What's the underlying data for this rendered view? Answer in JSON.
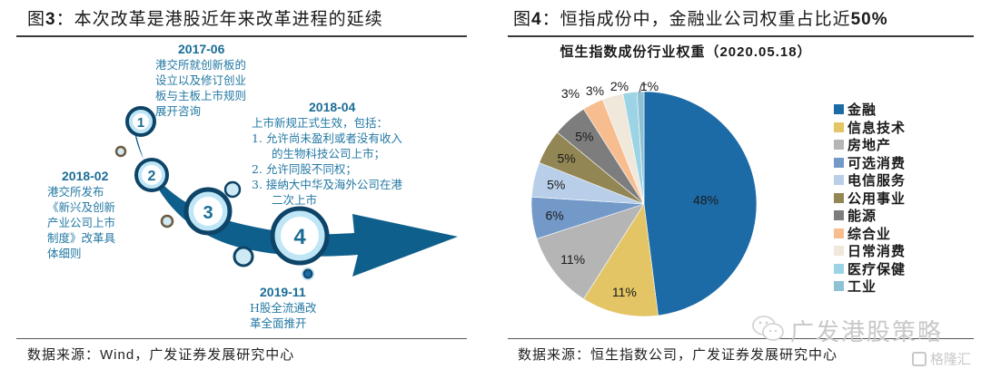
{
  "left_figure": {
    "title_prefix": "图",
    "title_num": "3",
    "title_text": "：本次改革是港股近年来改革进程的延续",
    "source_prefix": "数据来源：",
    "source_en": "Wind",
    "source_suffix": "，广发证券发展研究中心",
    "steps": [
      {
        "num": "1",
        "date": "2017-06",
        "lines": [
          "港交所就创新板的",
          "设立以及修订创业",
          "板与主板上市规则",
          "展开咨询"
        ]
      },
      {
        "num": "2",
        "date": "2018-02",
        "lines": [
          "港交所发布",
          "《新兴及创新",
          "产业公司上市",
          "制度》改革具",
          "体细则"
        ]
      },
      {
        "num": "3",
        "date": "2018-04",
        "lines": [
          "上市新规正式生效，包括：",
          "1.  允许尚未盈利或者没有收入",
          "的生物科技公司上市；",
          "2.  允许同股不同权；",
          "3.  接纳大中华及海外公司在港",
          "二次上市"
        ]
      },
      {
        "num": "4",
        "date": "2019-11",
        "lines": [
          "H股全流通改",
          "革全面推开"
        ]
      }
    ],
    "colors": {
      "arrow": "#0f5f8c",
      "ring": "#0d4467",
      "inner": "#bfe6f7",
      "text": "#2479a3",
      "date": "#1a6d96"
    }
  },
  "right_figure": {
    "title_prefix": "图",
    "title_num": "4",
    "title_text": "：恒指成份中，金融业公司权重占比近",
    "title_suffix": "50%",
    "source": "数据来源：恒生指数公司，广发证券发展研究中心",
    "watermark": "广发港股策略",
    "watermark2": "格隆汇"
  },
  "chart_data": {
    "type": "pie",
    "title_cn": "恒生指数成份行业权重",
    "title_date": "（2020.05.18）",
    "legend_position": "right",
    "start_angle_deg": 0,
    "direction": "clockwise",
    "slices": [
      {
        "name": "金融",
        "value": 48,
        "label": "48%",
        "color": "#1d6ba6"
      },
      {
        "name": "信息技术",
        "value": 11,
        "label": "11%",
        "color": "#e3c565"
      },
      {
        "name": "房地产",
        "value": 11,
        "label": "11%",
        "color": "#b5b5b5"
      },
      {
        "name": "可选消费",
        "value": 6,
        "label": "6%",
        "color": "#7399c9"
      },
      {
        "name": "电信服务",
        "value": 5,
        "label": "5%",
        "color": "#b9cfe9"
      },
      {
        "name": "公用事业",
        "value": 5,
        "label": "5%",
        "color": "#928655"
      },
      {
        "name": "能源",
        "value": 5,
        "label": "5%",
        "color": "#7d7d7d"
      },
      {
        "name": "综合业",
        "value": 3,
        "label": "3%",
        "color": "#f7bd8f"
      },
      {
        "name": "日常消费",
        "value": 3,
        "label": "3%",
        "color": "#f0e8db"
      },
      {
        "name": "医疗保健",
        "value": 2,
        "label": "2%",
        "color": "#9dd4e5"
      },
      {
        "name": "工业",
        "value": 1,
        "label": "1%",
        "color": "#8fc1d5"
      }
    ]
  }
}
